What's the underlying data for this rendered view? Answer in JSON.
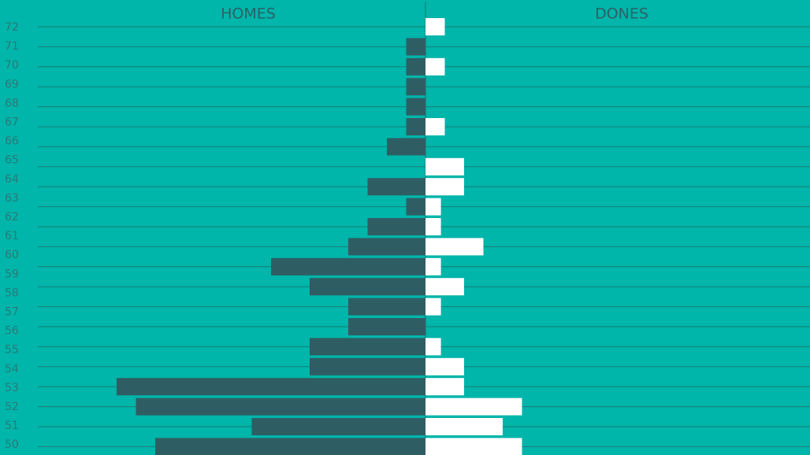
{
  "chart_data": {
    "type": "pyramid",
    "categories": [
      "72",
      "71",
      "70",
      "69",
      "68",
      "67",
      "66",
      "65",
      "64",
      "63",
      "62",
      "61",
      "60",
      "59",
      "58",
      "57",
      "56",
      "55",
      "54",
      "53",
      "52",
      "51",
      "50"
    ],
    "series": [
      {
        "name": "HOMES",
        "color": "#2e5e63",
        "side": "left",
        "values": [
          null,
          1,
          1,
          1,
          1,
          1,
          2,
          null,
          3,
          1,
          3,
          4,
          8,
          6,
          4,
          4,
          6,
          6,
          16,
          15,
          9,
          14,
          null
        ]
      },
      {
        "name": "DONES",
        "color": "#ffffff",
        "side": "right",
        "values": [
          1,
          null,
          1,
          null,
          null,
          1,
          null,
          2,
          2,
          0.8,
          0.8,
          3,
          0.8,
          2,
          0.8,
          null,
          0.8,
          2,
          2,
          5,
          4,
          5,
          null
        ]
      }
    ]
  }
}
